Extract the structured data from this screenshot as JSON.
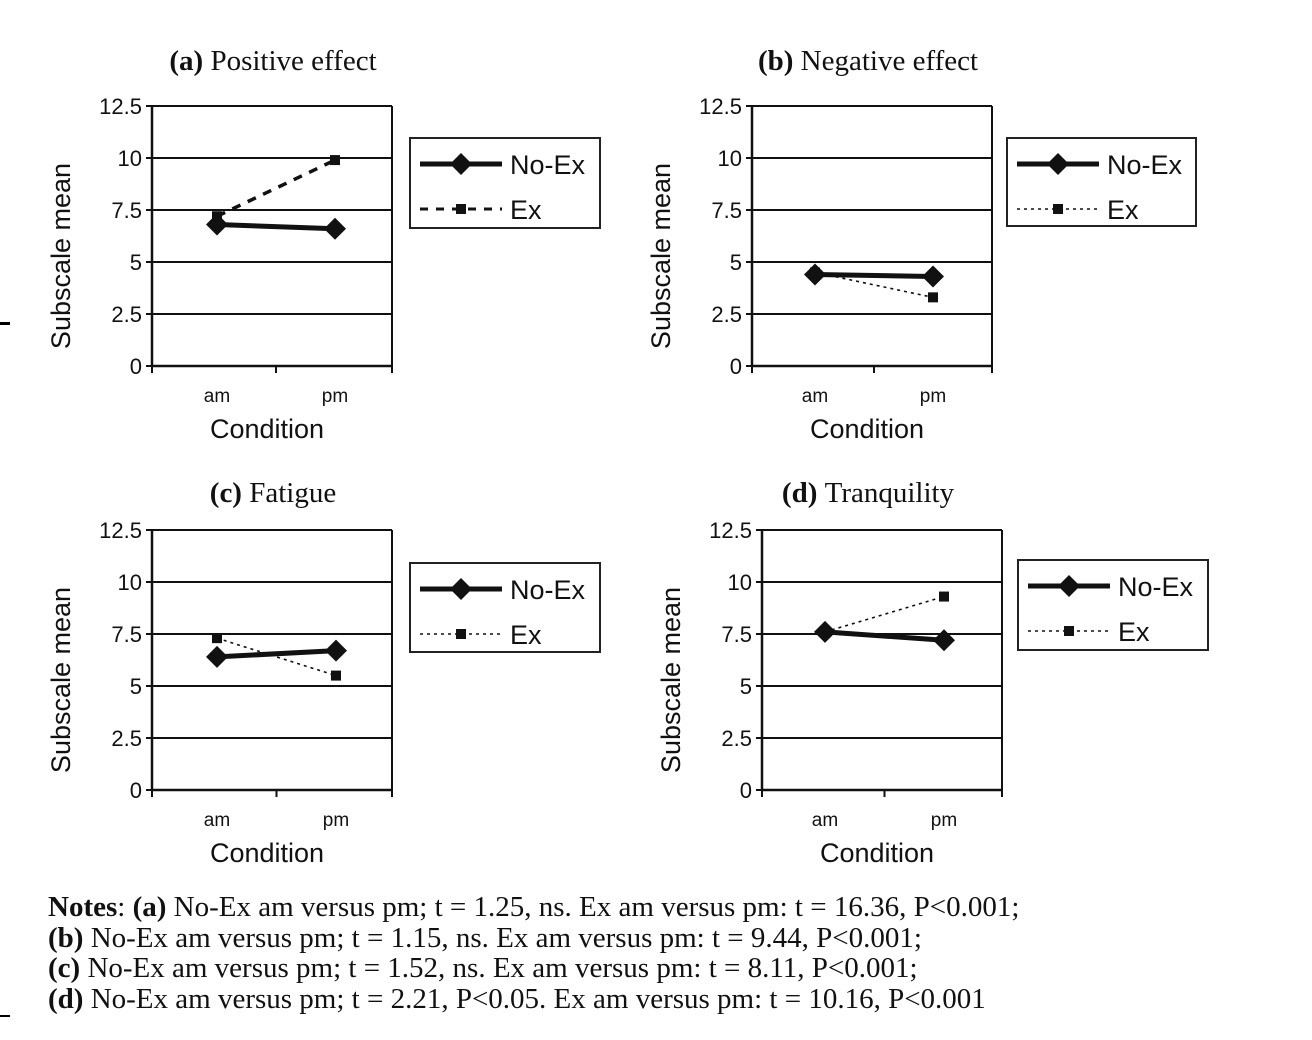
{
  "chart_data": [
    {
      "type": "line",
      "panel_label": "(a)",
      "title": "Positive effect",
      "xlabel": "Condition",
      "ylabel": "Subscale mean",
      "categories": [
        "am",
        "pm"
      ],
      "ylim": [
        0,
        12.5
      ],
      "yticks": [
        "0",
        "2.5",
        "5",
        "7.5",
        "10",
        "12.5"
      ],
      "grid": true,
      "legend_position": "right",
      "series": [
        {
          "name": "No-Ex",
          "values": [
            6.8,
            6.6
          ],
          "style": "solid",
          "marker": "diamond"
        },
        {
          "name": "Ex",
          "values": [
            7.2,
            9.9
          ],
          "style": "dashed",
          "marker": "square"
        }
      ]
    },
    {
      "type": "line",
      "panel_label": "(b)",
      "title": "Negative effect",
      "xlabel": "Condition",
      "ylabel": "Subscale mean",
      "categories": [
        "am",
        "pm"
      ],
      "ylim": [
        0,
        12.5
      ],
      "yticks": [
        "0",
        "2.5",
        "5",
        "7.5",
        "10",
        "12.5"
      ],
      "grid": true,
      "legend_position": "right",
      "series": [
        {
          "name": "No-Ex",
          "values": [
            4.4,
            4.3
          ],
          "style": "solid",
          "marker": "diamond"
        },
        {
          "name": "Ex",
          "values": [
            4.5,
            3.3
          ],
          "style": "dotted",
          "marker": "square"
        }
      ]
    },
    {
      "type": "line",
      "panel_label": "(c)",
      "title": "Fatigue",
      "xlabel": "Condition",
      "ylabel": "Subscale mean",
      "categories": [
        "am",
        "pm"
      ],
      "ylim": [
        0,
        12.5
      ],
      "yticks": [
        "0",
        "2.5",
        "5",
        "7.5",
        "10",
        "12.5"
      ],
      "grid": true,
      "legend_position": "right",
      "series": [
        {
          "name": "No-Ex",
          "values": [
            6.4,
            6.7
          ],
          "style": "solid",
          "marker": "diamond"
        },
        {
          "name": "Ex",
          "values": [
            7.3,
            5.5
          ],
          "style": "dotted",
          "marker": "square"
        }
      ]
    },
    {
      "type": "line",
      "panel_label": "(d)",
      "title": "Tranquility",
      "xlabel": "Condition",
      "ylabel": "Subscale mean",
      "categories": [
        "am",
        "pm"
      ],
      "ylim": [
        0,
        12.5
      ],
      "yticks": [
        "0",
        "2.5",
        "5",
        "7.5",
        "10",
        "12.5"
      ],
      "grid": true,
      "legend_position": "right",
      "series": [
        {
          "name": "No-Ex",
          "values": [
            7.6,
            7.2
          ],
          "style": "solid",
          "marker": "diamond"
        },
        {
          "name": "Ex",
          "values": [
            7.6,
            9.3
          ],
          "style": "dotted",
          "marker": "square"
        }
      ]
    }
  ],
  "notes": {
    "label": "Notes",
    "lines": [
      {
        "tag": "(a)",
        "text": " No-Ex am versus pm; t = 1.25, ns. Ex am versus pm: t = 16.36, P<0.001;"
      },
      {
        "tag": "(b)",
        "text": " No-Ex am versus pm; t = 1.15, ns. Ex am versus pm: t = 9.44, P<0.001;"
      },
      {
        "tag": "(c)",
        "text": " No-Ex am versus pm; t = 1.52, ns. Ex am versus pm: t = 8.11, P<0.001;"
      },
      {
        "tag": "(d)",
        "text": " No-Ex am versus pm; t = 2.21, P<0.05. Ex am versus pm: t = 10.16, P<0.001"
      }
    ]
  }
}
